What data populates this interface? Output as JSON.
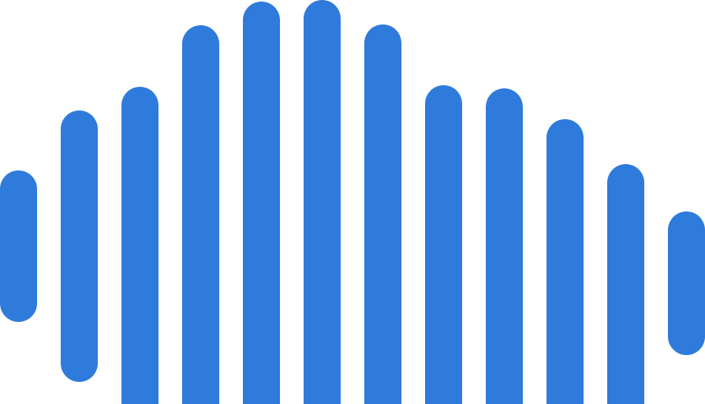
{
  "icon": "sound-wave-icon",
  "colors": {
    "bar": "#2f7bdb",
    "background": "#ffffff"
  }
}
